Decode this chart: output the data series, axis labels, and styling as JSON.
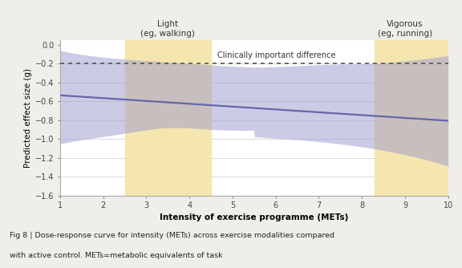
{
  "xlabel": "Intensity of exercise programme (METs)",
  "ylabel": "Predicted effect size (g)",
  "xlim": [
    1,
    10
  ],
  "ylim": [
    -1.6,
    0.05
  ],
  "yticks": [
    0,
    -0.2,
    -0.4,
    -0.6,
    -0.8,
    -1.0,
    -1.2,
    -1.4,
    -1.6
  ],
  "xticks": [
    1,
    2,
    3,
    4,
    5,
    6,
    7,
    8,
    9,
    10
  ],
  "clinically_important": -0.2,
  "main_line_color": "#6666aa",
  "ci_color": "#9999cc",
  "ci_alpha": 0.5,
  "highlight_color": "#f5e6b0",
  "highlight_alpha": 1.0,
  "dashed_color": "#555555",
  "light_label": "Light\n(eg, walking)",
  "light_x": 3.5,
  "light_xmin": 2.5,
  "light_xmax": 4.5,
  "vigorous_label": "Vigorous\n(eg, running)",
  "vigorous_x": 9.0,
  "vigorous_xmin": 8.3,
  "vigorous_xmax": 10.0,
  "caption_line1": "Fig 8 | Dose-response curve for intensity (METs) across exercise modalities compared",
  "caption_line2": "with active control. METs=metabolic equivalents of task",
  "background_color": "#f0eeea"
}
